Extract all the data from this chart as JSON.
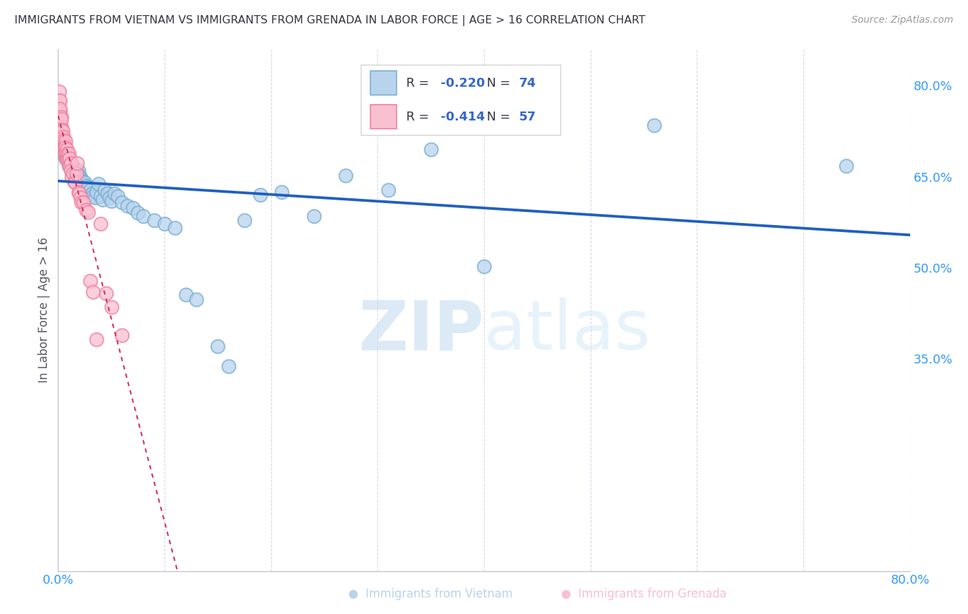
{
  "title": "IMMIGRANTS FROM VIETNAM VS IMMIGRANTS FROM GRENADA IN LABOR FORCE | AGE > 16 CORRELATION CHART",
  "source": "Source: ZipAtlas.com",
  "ylabel": "In Labor Force | Age > 16",
  "x_min": 0.0,
  "x_max": 0.8,
  "y_min": 0.0,
  "y_max": 0.86,
  "ytick_labels_right": [
    "35.0%",
    "50.0%",
    "65.0%",
    "80.0%"
  ],
  "ytick_values_right": [
    0.35,
    0.5,
    0.65,
    0.8
  ],
  "watermark_zip": "ZIP",
  "watermark_atlas": "atlas",
  "legend_r1": "R = -0.220",
  "legend_n1": "N = 74",
  "legend_r2": "R = -0.414",
  "legend_n2": "N = 57",
  "color_vietnam_face": "#b8d4ec",
  "color_vietnam_edge": "#7aaed4",
  "color_grenada_face": "#f9c0d0",
  "color_grenada_edge": "#f080a0",
  "color_trendline_vietnam": "#2060c0",
  "color_trendline_grenada": "#d03060",
  "background_color": "#ffffff",
  "grid_color": "#d8d8e8",
  "vietnam_x": [
    0.001,
    0.002,
    0.003,
    0.003,
    0.004,
    0.004,
    0.005,
    0.005,
    0.005,
    0.006,
    0.006,
    0.006,
    0.007,
    0.007,
    0.007,
    0.008,
    0.008,
    0.009,
    0.01,
    0.01,
    0.01,
    0.011,
    0.012,
    0.013,
    0.014,
    0.015,
    0.016,
    0.017,
    0.018,
    0.019,
    0.02,
    0.021,
    0.022,
    0.023,
    0.024,
    0.025,
    0.027,
    0.028,
    0.03,
    0.032,
    0.033,
    0.035,
    0.036,
    0.038,
    0.04,
    0.042,
    0.044,
    0.046,
    0.048,
    0.05,
    0.053,
    0.056,
    0.06,
    0.065,
    0.07,
    0.075,
    0.08,
    0.09,
    0.1,
    0.11,
    0.12,
    0.13,
    0.15,
    0.16,
    0.175,
    0.19,
    0.21,
    0.24,
    0.27,
    0.31,
    0.35,
    0.4,
    0.56,
    0.74
  ],
  "vietnam_y": [
    0.7,
    0.71,
    0.715,
    0.705,
    0.71,
    0.698,
    0.705,
    0.695,
    0.7,
    0.698,
    0.69,
    0.685,
    0.692,
    0.685,
    0.68,
    0.688,
    0.682,
    0.678,
    0.68,
    0.672,
    0.668,
    0.675,
    0.67,
    0.665,
    0.668,
    0.662,
    0.658,
    0.66,
    0.655,
    0.66,
    0.652,
    0.648,
    0.645,
    0.642,
    0.638,
    0.64,
    0.635,
    0.632,
    0.628,
    0.622,
    0.618,
    0.615,
    0.625,
    0.638,
    0.618,
    0.612,
    0.628,
    0.622,
    0.615,
    0.61,
    0.622,
    0.618,
    0.608,
    0.602,
    0.598,
    0.59,
    0.585,
    0.578,
    0.572,
    0.565,
    0.455,
    0.448,
    0.37,
    0.338,
    0.578,
    0.62,
    0.625,
    0.585,
    0.652,
    0.628,
    0.695,
    0.502,
    0.735,
    0.668
  ],
  "grenada_x": [
    0.001,
    0.001,
    0.001,
    0.002,
    0.002,
    0.002,
    0.002,
    0.003,
    0.003,
    0.003,
    0.003,
    0.004,
    0.004,
    0.004,
    0.004,
    0.005,
    0.005,
    0.005,
    0.005,
    0.006,
    0.006,
    0.006,
    0.006,
    0.007,
    0.007,
    0.007,
    0.008,
    0.008,
    0.008,
    0.009,
    0.009,
    0.01,
    0.01,
    0.011,
    0.011,
    0.012,
    0.012,
    0.013,
    0.014,
    0.015,
    0.016,
    0.017,
    0.018,
    0.019,
    0.02,
    0.021,
    0.022,
    0.024,
    0.026,
    0.028,
    0.03,
    0.033,
    0.036,
    0.04,
    0.045,
    0.05,
    0.06
  ],
  "grenada_y": [
    0.79,
    0.775,
    0.758,
    0.775,
    0.758,
    0.742,
    0.762,
    0.748,
    0.732,
    0.745,
    0.728,
    0.718,
    0.708,
    0.698,
    0.725,
    0.715,
    0.705,
    0.698,
    0.71,
    0.705,
    0.698,
    0.688,
    0.702,
    0.708,
    0.698,
    0.688,
    0.695,
    0.685,
    0.678,
    0.688,
    0.678,
    0.688,
    0.678,
    0.68,
    0.668,
    0.672,
    0.66,
    0.648,
    0.655,
    0.642,
    0.64,
    0.655,
    0.672,
    0.625,
    0.622,
    0.615,
    0.608,
    0.608,
    0.595,
    0.592,
    0.478,
    0.46,
    0.382,
    0.572,
    0.458,
    0.435,
    0.388
  ],
  "grenada_trendline_x0": 0.0,
  "grenada_trendline_x1": 0.155,
  "vietnam_trendline_x0": 0.0,
  "vietnam_trendline_x1": 0.8
}
